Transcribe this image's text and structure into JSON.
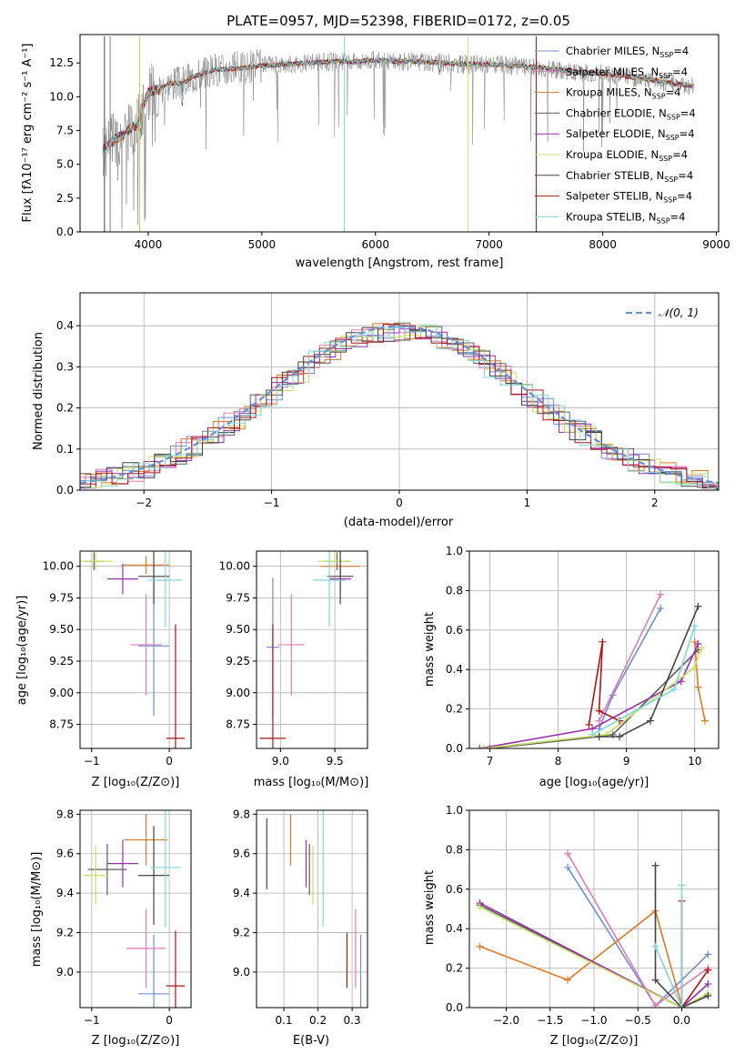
{
  "figure": {
    "title": "PLATE=0957, MJD=52398, FIBERID=0172, z=0.05"
  },
  "models": [
    {
      "name": "Chabrier MILES",
      "color": "#6a90d6"
    },
    {
      "name": "Salpeter MILES",
      "color": "#e07ab8"
    },
    {
      "name": "Kroupa MILES",
      "color": "#e07820"
    },
    {
      "name": "Chabrier ELODIE",
      "color": "#5e5e5e"
    },
    {
      "name": "Salpeter ELODIE",
      "color": "#9a2fb0"
    },
    {
      "name": "Kroupa ELODIE",
      "color": "#c8e060"
    },
    {
      "name": "Chabrier STELIB",
      "color": "#444444"
    },
    {
      "name": "Salpeter STELIB",
      "color": "#b01414"
    },
    {
      "name": "Kroupa STELIB",
      "color": "#7fd8d8"
    }
  ],
  "legend_suffix_pre": ", N",
  "legend_suffix_sub": "SSP",
  "legend_suffix_post": "=4",
  "spectrum": {
    "xlabel": "wavelength [Angstrom, rest frame]",
    "ylabel": "Flux [fλ10⁻¹⁷ erg cm⁻² s⁻¹ A⁻¹]",
    "data_color": "#7f7f7f",
    "xlim": [
      3400,
      9020
    ],
    "ylim": [
      0,
      14.6
    ],
    "xticks": [
      "4000",
      "5000",
      "6000",
      "7000",
      "8000",
      "9000"
    ],
    "yticks": [
      "0.0",
      "2.5",
      "5.0",
      "7.5",
      "10.0",
      "12.5"
    ],
    "continuum": {
      "wavelength": [
        3600,
        3700,
        3800,
        3900,
        4000,
        4100,
        4200,
        4300,
        4400,
        4500,
        4600,
        4800,
        5000,
        5200,
        5400,
        5600,
        5800,
        6000,
        6200,
        6400,
        6600,
        6800,
        7000,
        7200,
        7400,
        7600,
        7800,
        8000,
        8200,
        8400,
        8600,
        8800
      ],
      "flux": [
        6.0,
        6.8,
        7.3,
        8.0,
        10.3,
        10.6,
        11.0,
        11.0,
        11.5,
        11.8,
        12.0,
        12.1,
        12.3,
        12.4,
        12.5,
        12.6,
        12.6,
        12.7,
        12.6,
        12.6,
        12.5,
        12.4,
        12.4,
        12.3,
        12.2,
        12.0,
        11.8,
        11.7,
        11.5,
        11.3,
        11.0,
        10.8
      ]
    }
  },
  "residuals": {
    "xlabel": "(data-model)/error",
    "ylabel": "Normed distribution",
    "legend_label": "𝒩(0, 1)",
    "xlim": [
      -2.5,
      2.5
    ],
    "ylim": [
      0,
      0.48
    ],
    "xticks": [
      "−2",
      "−1",
      "0",
      "1",
      "2"
    ],
    "yticks": [
      "0.0",
      "0.1",
      "0.2",
      "0.3",
      "0.4"
    ]
  },
  "age_vs_Z": {
    "xlabel": "Z [log₁₀(Z/Z⊙)]",
    "ylabel": "age  [log₁₀(age/yr)]",
    "xlim": [
      -1.15,
      0.28
    ],
    "ylim": [
      8.56,
      10.12
    ],
    "xticks": [
      "−1",
      "0"
    ],
    "yticks": [
      "8.75",
      "9.00",
      "9.25",
      "9.50",
      "9.75",
      "10.00"
    ]
  },
  "age_vs_mass": {
    "xlabel": "mass [log₁₀(M/M⊙)]",
    "xlim": [
      8.78,
      9.8
    ],
    "ylim": [
      8.56,
      10.12
    ],
    "xticks": [
      "9.0",
      "9.5"
    ],
    "yticks": [
      "8.75",
      "9.00",
      "9.25",
      "9.50",
      "9.75",
      "10.00"
    ]
  },
  "mass_vs_Z": {
    "xlabel": "Z [log₁₀(Z/Z⊙)]",
    "ylabel": "mass [log₁₀(M/M⊙)]",
    "xlim": [
      -1.15,
      0.28
    ],
    "ylim": [
      8.82,
      9.82
    ],
    "xticks": [
      "−1",
      "0"
    ],
    "yticks": [
      "9.0",
      "9.2",
      "9.4",
      "9.6",
      "9.8"
    ]
  },
  "mass_vs_ebv": {
    "xlabel": "E(B-V)",
    "xlim": [
      0.02,
      0.345
    ],
    "ylim": [
      8.82,
      9.82
    ],
    "xticks": [
      "0.1",
      "0.2",
      "0.3"
    ],
    "yticks": [
      "9.0",
      "9.2",
      "9.4",
      "9.6",
      "9.8"
    ]
  },
  "weight_vs_age": {
    "xlabel": "age  [log₁₀(age/yr)]",
    "ylabel": "mass weight",
    "xlim": [
      6.7,
      10.35
    ],
    "ylim": [
      0,
      1.0
    ],
    "xticks": [
      "7",
      "8",
      "9",
      "10"
    ],
    "yticks": [
      "0.0",
      "0.2",
      "0.4",
      "0.6",
      "0.8",
      "1.0"
    ]
  },
  "weight_vs_Z": {
    "xlabel": "Z [log₁₀(Z/Z⊙)]",
    "ylabel": "mass weight",
    "xlim": [
      -2.42,
      0.42
    ],
    "ylim": [
      0,
      1.0
    ],
    "xticks": [
      "−2.0",
      "−1.5",
      "−1.0",
      "−0.5",
      "0.0"
    ],
    "yticks": [
      "0.0",
      "0.2",
      "0.4",
      "0.6",
      "0.8",
      "1.0"
    ]
  },
  "chart_data": [
    {
      "type": "line",
      "title": "PLATE=0957, MJD=52398, FIBERID=0172, z=0.05",
      "xlabel": "wavelength [Angstrom, rest frame]",
      "ylabel": "Flux [fλ10⁻¹⁷ erg cm⁻² s⁻¹ A⁻¹]",
      "xlim": [
        3400,
        9020
      ],
      "ylim": [
        0,
        14.6
      ],
      "legend_position": "upper-right",
      "series": [
        {
          "name": "Chabrier MILES, NSSP=4"
        },
        {
          "name": "Salpeter MILES, NSSP=4"
        },
        {
          "name": "Kroupa MILES, NSSP=4"
        },
        {
          "name": "Chabrier ELODIE, NSSP=4"
        },
        {
          "name": "Salpeter ELODIE, NSSP=4"
        },
        {
          "name": "Kroupa ELODIE, NSSP=4"
        },
        {
          "name": "Chabrier STELIB, NSSP=4"
        },
        {
          "name": "Salpeter STELIB, NSSP=4"
        },
        {
          "name": "Kroupa STELIB, NSSP=4"
        }
      ]
    },
    {
      "type": "bar",
      "xlabel": "(data-model)/error",
      "ylabel": "Normed distribution",
      "xlim": [
        -2.5,
        2.5
      ],
      "ylim": [
        0,
        0.48
      ],
      "grid": true,
      "legend_position": "upper-right",
      "reference_curve": "𝒩(0, 1)",
      "histogram_bins": 40
    },
    {
      "type": "scatter",
      "xlabel": "Z [log₁₀(Z/Z⊙)]",
      "ylabel": "age  [log₁₀(age/yr)]",
      "grid": true,
      "points": [
        {
          "model": "Chabrier MILES",
          "x": -0.2,
          "y": 9.37,
          "xerr": 0.2,
          "yerr": 0.55
        },
        {
          "model": "Salpeter MILES",
          "x": -0.3,
          "y": 9.38,
          "xerr": 0.2,
          "yerr": 0.4
        },
        {
          "model": "Kroupa MILES",
          "x": -0.3,
          "y": 10.01,
          "xerr": 0.3,
          "yerr": 0.07
        },
        {
          "model": "Chabrier ELODIE",
          "x": -0.97,
          "y": 10.04,
          "xerr": 0.12,
          "yerr": 0.07
        },
        {
          "model": "Salpeter ELODIE",
          "x": -0.6,
          "y": 9.9,
          "xerr": 0.2,
          "yerr": 0.12
        },
        {
          "model": "Kroupa ELODIE",
          "x": -0.95,
          "y": 10.04,
          "xerr": 0.22,
          "yerr": 0.07
        },
        {
          "model": "Chabrier STELIB",
          "x": -0.2,
          "y": 9.92,
          "xerr": 0.2,
          "yerr": 0.22
        },
        {
          "model": "Salpeter STELIB",
          "x": 0.08,
          "y": 8.64,
          "xerr": 0.12,
          "yerr": 0.9
        },
        {
          "model": "Kroupa STELIB",
          "x": -0.05,
          "y": 9.89,
          "xerr": 0.22,
          "yerr": 0.37
        }
      ]
    },
    {
      "type": "scatter",
      "xlabel": "mass [log₁₀(M/M⊙)]",
      "ylabel": "age  [log₁₀(age/yr)]",
      "grid": true,
      "points": [
        {
          "model": "Chabrier MILES",
          "x": 8.93,
          "y": 9.36,
          "xerr": 0.06,
          "yerr": 0.55
        },
        {
          "model": "Salpeter MILES",
          "x": 9.1,
          "y": 9.38,
          "xerr": 0.12,
          "yerr": 0.4
        },
        {
          "model": "Kroupa MILES",
          "x": 9.55,
          "y": 10.0,
          "xerr": 0.18,
          "yerr": 0.07
        },
        {
          "model": "Chabrier ELODIE",
          "x": 9.52,
          "y": 10.04,
          "xerr": 0.12,
          "yerr": 0.07
        },
        {
          "model": "Salpeter ELODIE",
          "x": 9.55,
          "y": 9.9,
          "xerr": 0.1,
          "yerr": 0.1
        },
        {
          "model": "Kroupa ELODIE",
          "x": 9.5,
          "y": 10.04,
          "xerr": 0.15,
          "yerr": 0.07
        },
        {
          "model": "Chabrier STELIB",
          "x": 9.55,
          "y": 9.92,
          "xerr": 0.12,
          "yerr": 0.22
        },
        {
          "model": "Salpeter STELIB",
          "x": 8.93,
          "y": 8.64,
          "xerr": 0.12,
          "yerr": 0.9
        },
        {
          "model": "Kroupa STELIB",
          "x": 9.45,
          "y": 9.89,
          "xerr": 0.15,
          "yerr": 0.37
        }
      ]
    },
    {
      "type": "scatter",
      "xlabel": "Z [log₁₀(Z/Z⊙)]",
      "ylabel": "mass [log₁₀(M/M⊙)]",
      "grid": true,
      "points": [
        {
          "model": "Chabrier MILES",
          "x": -0.2,
          "y": 8.89,
          "xerr": 0.2,
          "yerr": 0.3
        },
        {
          "model": "Salpeter MILES",
          "x": -0.3,
          "y": 9.12,
          "xerr": 0.25,
          "yerr": 0.2
        },
        {
          "model": "Kroupa MILES",
          "x": -0.3,
          "y": 9.67,
          "xerr": 0.28,
          "yerr": 0.13
        },
        {
          "model": "Chabrier ELODIE",
          "x": -0.8,
          "y": 9.52,
          "xerr": 0.25,
          "yerr": 0.13
        },
        {
          "model": "Salpeter ELODIE",
          "x": -0.6,
          "y": 9.55,
          "xerr": 0.2,
          "yerr": 0.12
        },
        {
          "model": "Kroupa ELODIE",
          "x": -0.95,
          "y": 9.49,
          "xerr": 0.15,
          "yerr": 0.15
        },
        {
          "model": "Chabrier STELIB",
          "x": -0.2,
          "y": 9.49,
          "xerr": 0.2,
          "yerr": 0.25
        },
        {
          "model": "Salpeter STELIB",
          "x": 0.08,
          "y": 8.93,
          "xerr": 0.12,
          "yerr": 0.28
        },
        {
          "model": "Kroupa STELIB",
          "x": -0.05,
          "y": 9.53,
          "xerr": 0.2,
          "yerr": 0.3
        }
      ]
    },
    {
      "type": "scatter",
      "xlabel": "E(B-V)",
      "ylabel": "mass [log₁₀(M/M⊙)]",
      "grid": true,
      "points": [
        {
          "model": "Chabrier MILES",
          "x": 0.325,
          "y": 8.89,
          "yerr": 0.3
        },
        {
          "model": "Salpeter MILES",
          "x": 0.31,
          "y": 9.12,
          "yerr": 0.2
        },
        {
          "model": "Kroupa MILES",
          "x": 0.12,
          "y": 9.67,
          "yerr": 0.13
        },
        {
          "model": "Chabrier ELODIE",
          "x": 0.175,
          "y": 9.52,
          "yerr": 0.13
        },
        {
          "model": "Salpeter ELODIE",
          "x": 0.165,
          "y": 9.55,
          "yerr": 0.12
        },
        {
          "model": "Kroupa ELODIE",
          "x": 0.185,
          "y": 9.49,
          "yerr": 0.15
        },
        {
          "model": "Chabrier STELIB",
          "x": 0.05,
          "y": 9.6,
          "yerr": 0.18
        },
        {
          "model": "Salpeter STELIB",
          "x": 0.285,
          "y": 9.06,
          "yerr": 0.14
        },
        {
          "model": "Kroupa STELIB",
          "x": 0.215,
          "y": 9.53,
          "yerr": 0.3
        }
      ]
    },
    {
      "type": "line",
      "xlabel": "age  [log₁₀(age/yr)]",
      "ylabel": "mass weight",
      "xlim": [
        6.7,
        10.35
      ],
      "ylim": [
        0,
        1.0
      ],
      "grid": true,
      "series": [
        {
          "model": "Chabrier MILES",
          "x": [
            8.6,
            8.8,
            9.5
          ],
          "y": [
            0.1,
            0.27,
            0.71
          ]
        },
        {
          "model": "Salpeter MILES",
          "x": [
            8.6,
            9.5
          ],
          "y": [
            0.14,
            0.78
          ]
        },
        {
          "model": "Kroupa MILES",
          "x": [
            10.0,
            10.05,
            10.15
          ],
          "y": [
            0.54,
            0.31,
            0.14
          ]
        },
        {
          "model": "Chabrier ELODIE",
          "x": [
            7.0,
            8.6,
            8.8,
            10.05
          ],
          "y": [
            0.0,
            0.06,
            0.07,
            0.5
          ]
        },
        {
          "model": "Salpeter ELODIE",
          "x": [
            6.85,
            8.5,
            9.8,
            10.05
          ],
          "y": [
            0.0,
            0.1,
            0.34,
            0.53
          ]
        },
        {
          "model": "Kroupa ELODIE",
          "x": [
            6.9,
            8.7,
            10.0,
            10.1
          ],
          "y": [
            0.0,
            0.07,
            0.41,
            0.51
          ]
        },
        {
          "model": "Chabrier STELIB",
          "x": [
            8.6,
            8.9,
            9.35,
            10.05
          ],
          "y": [
            0.06,
            0.06,
            0.14,
            0.72
          ]
        },
        {
          "model": "Salpeter STELIB",
          "x": [
            8.45,
            8.65,
            8.6,
            8.9
          ],
          "y": [
            0.12,
            0.54,
            0.19,
            0.14
          ]
        },
        {
          "model": "Kroupa STELIB",
          "x": [
            8.5,
            9.7,
            10.0
          ],
          "y": [
            0.07,
            0.3,
            0.62
          ]
        }
      ]
    },
    {
      "type": "line",
      "xlabel": "Z [log₁₀(Z/Z⊙)]",
      "ylabel": "mass weight",
      "xlim": [
        -2.42,
        0.42
      ],
      "ylim": [
        0,
        1.0
      ],
      "grid": true,
      "series": [
        {
          "model": "Chabrier MILES",
          "x": [
            -1.3,
            -0.3,
            0.3
          ],
          "y": [
            0.71,
            0.01,
            0.27
          ]
        },
        {
          "model": "Salpeter MILES",
          "x": [
            -1.3,
            -0.3,
            0.3
          ],
          "y": [
            0.78,
            0.01,
            0.2
          ]
        },
        {
          "model": "Kroupa MILES",
          "x": [
            -2.3,
            -1.3,
            -0.3,
            0.0
          ],
          "y": [
            0.31,
            0.14,
            0.49,
            0.01
          ]
        },
        {
          "model": "Chabrier ELODIE",
          "x": [
            -2.3,
            0.0,
            0.3
          ],
          "y": [
            0.52,
            0.0,
            0.07
          ]
        },
        {
          "model": "Salpeter ELODIE",
          "x": [
            -2.3,
            0.0,
            0.3
          ],
          "y": [
            0.53,
            0.0,
            0.12
          ]
        },
        {
          "model": "Kroupa ELODIE",
          "x": [
            -2.3,
            0.0,
            0.3
          ],
          "y": [
            0.51,
            0.0,
            0.07
          ]
        },
        {
          "model": "Chabrier STELIB",
          "x": [
            -0.3,
            -0.3,
            0.0,
            0.3
          ],
          "y": [
            0.72,
            0.14,
            0.0,
            0.06
          ]
        },
        {
          "model": "Salpeter STELIB",
          "x": [
            0.0,
            0.0,
            0.3
          ],
          "y": [
            0.54,
            0.0,
            0.19
          ]
        },
        {
          "model": "Kroupa STELIB",
          "x": [
            -0.3,
            0.0,
            0.0
          ],
          "y": [
            0.31,
            0.0,
            0.62
          ]
        }
      ]
    }
  ]
}
